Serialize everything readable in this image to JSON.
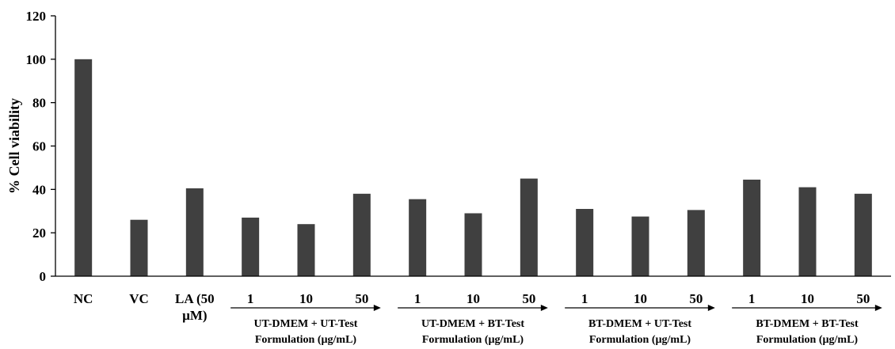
{
  "chart_data": {
    "type": "bar",
    "ylabel": "% Cell viability",
    "ylim": [
      0,
      120
    ],
    "yticks": [
      0,
      20,
      40,
      60,
      80,
      100,
      120
    ],
    "grid": false,
    "legend": "none",
    "bar_color": "#404040",
    "categories": [
      [
        "NC"
      ],
      [
        "VC"
      ],
      [
        "LA (50",
        "µM)"
      ],
      [
        "1"
      ],
      [
        "10"
      ],
      [
        "50"
      ],
      [
        "1"
      ],
      [
        "10"
      ],
      [
        "50"
      ],
      [
        "1"
      ],
      [
        "10"
      ],
      [
        "50"
      ],
      [
        "1"
      ],
      [
        "10"
      ],
      [
        "50"
      ]
    ],
    "values": [
      100,
      26,
      40.5,
      27,
      24,
      38,
      35.5,
      29,
      45,
      31,
      27.5,
      30.5,
      44.5,
      41,
      38
    ],
    "groups": [
      {
        "lines": [
          "UT-DMEM + UT-Test",
          "Formulation (µg/mL)"
        ],
        "first": 3,
        "last": 5
      },
      {
        "lines": [
          "UT-DMEM + BT-Test",
          "Formulation (µg/mL)"
        ],
        "first": 6,
        "last": 8
      },
      {
        "lines": [
          "BT-DMEM + UT-Test",
          "Formulation (µg/mL)"
        ],
        "first": 9,
        "last": 11
      },
      {
        "lines": [
          "BT-DMEM + BT-Test",
          "Formulation (µg/mL)"
        ],
        "first": 12,
        "last": 14
      }
    ]
  }
}
